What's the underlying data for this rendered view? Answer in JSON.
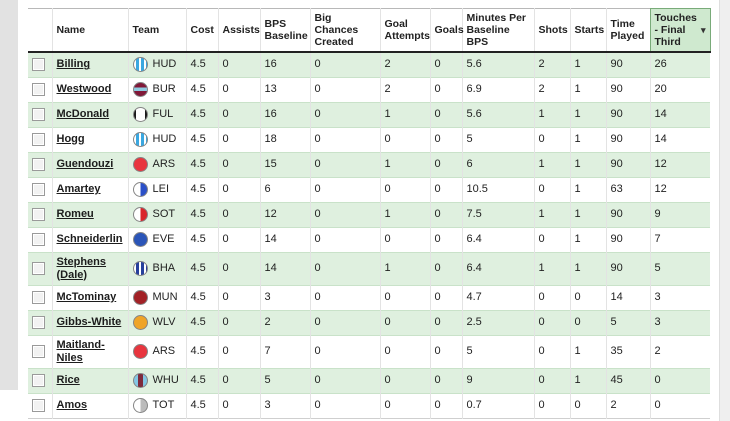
{
  "page": {
    "left_strip_color": "#e2e2e2",
    "right_strip_color": "#efefef"
  },
  "table": {
    "sort_icon": "▾",
    "colors": {
      "row_highlight": "#dff0df",
      "row_highlight_border": "#c9e2c9",
      "sorted_header_bg": "#cfe9cf",
      "sorted_header_border": "#79ab79",
      "header_rule": "#222222",
      "grid_line": "#e3e3e3"
    },
    "columns": [
      {
        "key": "select",
        "label": "",
        "sorted": false
      },
      {
        "key": "name",
        "label": "Name",
        "sorted": false
      },
      {
        "key": "team",
        "label": "Team",
        "sorted": false
      },
      {
        "key": "cost",
        "label": "Cost",
        "sorted": false
      },
      {
        "key": "assists",
        "label": "Assists",
        "sorted": false
      },
      {
        "key": "bps_baseline",
        "label": "BPS Baseline",
        "sorted": false
      },
      {
        "key": "big_chances_created",
        "label": "Big Chances Created",
        "sorted": false
      },
      {
        "key": "goal_attempts",
        "label": "Goal Attempts",
        "sorted": false
      },
      {
        "key": "goals",
        "label": "Goals",
        "sorted": false
      },
      {
        "key": "minutes_per_baseline_bps",
        "label": "Minutes Per Baseline BPS",
        "sorted": false
      },
      {
        "key": "shots",
        "label": "Shots",
        "sorted": false
      },
      {
        "key": "starts",
        "label": "Starts",
        "sorted": false
      },
      {
        "key": "time_played",
        "label": "Time Played",
        "sorted": false
      },
      {
        "key": "touches_final_third",
        "label": "Touches - Final Third",
        "sorted": true
      }
    ],
    "team_badges": {
      "HUD": {
        "type": "stripes",
        "colors": [
          "#ffffff",
          "#3ba7e0"
        ]
      },
      "BUR": {
        "type": "band-h",
        "colors": [
          "#801838",
          "#8ecbe0"
        ]
      },
      "FUL": {
        "type": "edges",
        "colors": [
          "#ffffff",
          "#1a1a1a"
        ]
      },
      "ARS": {
        "type": "solid",
        "colors": [
          "#e8353e"
        ]
      },
      "LEI": {
        "type": "half",
        "colors": [
          "#ffffff",
          "#2b50c8"
        ]
      },
      "SOT": {
        "type": "half",
        "colors": [
          "#ffffff",
          "#d9252b"
        ]
      },
      "EVE": {
        "type": "solid",
        "colors": [
          "#2b55b8"
        ]
      },
      "BHA": {
        "type": "stripes",
        "colors": [
          "#ffffff",
          "#27409c"
        ]
      },
      "MUN": {
        "type": "solid",
        "colors": [
          "#a22126"
        ]
      },
      "WLV": {
        "type": "solid",
        "colors": [
          "#efa428"
        ]
      },
      "WHU": {
        "type": "band-v",
        "colors": [
          "#84c7e4",
          "#7e2a3c"
        ]
      },
      "TOT": {
        "type": "half",
        "colors": [
          "#ffffff",
          "#bbbbbb"
        ]
      }
    },
    "rows": [
      {
        "name": "Billing",
        "team": "HUD",
        "cost": "4.5",
        "assists": "0",
        "bps_baseline": "16",
        "big_chances_created": "0",
        "goal_attempts": "2",
        "goals": "0",
        "minutes_per_baseline_bps": "5.6",
        "shots": "2",
        "starts": "1",
        "time_played": "90",
        "touches_final_third": "26",
        "highlight": true
      },
      {
        "name": "Westwood",
        "team": "BUR",
        "cost": "4.5",
        "assists": "0",
        "bps_baseline": "13",
        "big_chances_created": "0",
        "goal_attempts": "2",
        "goals": "0",
        "minutes_per_baseline_bps": "6.9",
        "shots": "2",
        "starts": "1",
        "time_played": "90",
        "touches_final_third": "20",
        "highlight": false
      },
      {
        "name": "McDonald",
        "team": "FUL",
        "cost": "4.5",
        "assists": "0",
        "bps_baseline": "16",
        "big_chances_created": "0",
        "goal_attempts": "1",
        "goals": "0",
        "minutes_per_baseline_bps": "5.6",
        "shots": "1",
        "starts": "1",
        "time_played": "90",
        "touches_final_third": "14",
        "highlight": true
      },
      {
        "name": "Hogg",
        "team": "HUD",
        "cost": "4.5",
        "assists": "0",
        "bps_baseline": "18",
        "big_chances_created": "0",
        "goal_attempts": "0",
        "goals": "0",
        "minutes_per_baseline_bps": "5",
        "shots": "0",
        "starts": "1",
        "time_played": "90",
        "touches_final_third": "14",
        "highlight": false
      },
      {
        "name": "Guendouzi",
        "team": "ARS",
        "cost": "4.5",
        "assists": "0",
        "bps_baseline": "15",
        "big_chances_created": "0",
        "goal_attempts": "1",
        "goals": "0",
        "minutes_per_baseline_bps": "6",
        "shots": "1",
        "starts": "1",
        "time_played": "90",
        "touches_final_third": "12",
        "highlight": true
      },
      {
        "name": "Amartey",
        "team": "LEI",
        "cost": "4.5",
        "assists": "0",
        "bps_baseline": "6",
        "big_chances_created": "0",
        "goal_attempts": "0",
        "goals": "0",
        "minutes_per_baseline_bps": "10.5",
        "shots": "0",
        "starts": "1",
        "time_played": "63",
        "touches_final_third": "12",
        "highlight": false
      },
      {
        "name": "Romeu",
        "team": "SOT",
        "cost": "4.5",
        "assists": "0",
        "bps_baseline": "12",
        "big_chances_created": "0",
        "goal_attempts": "1",
        "goals": "0",
        "minutes_per_baseline_bps": "7.5",
        "shots": "1",
        "starts": "1",
        "time_played": "90",
        "touches_final_third": "9",
        "highlight": true
      },
      {
        "name": "Schneiderlin",
        "team": "EVE",
        "cost": "4.5",
        "assists": "0",
        "bps_baseline": "14",
        "big_chances_created": "0",
        "goal_attempts": "0",
        "goals": "0",
        "minutes_per_baseline_bps": "6.4",
        "shots": "0",
        "starts": "1",
        "time_played": "90",
        "touches_final_third": "7",
        "highlight": false
      },
      {
        "name": "Stephens (Dale)",
        "team": "BHA",
        "cost": "4.5",
        "assists": "0",
        "bps_baseline": "14",
        "big_chances_created": "0",
        "goal_attempts": "1",
        "goals": "0",
        "minutes_per_baseline_bps": "6.4",
        "shots": "1",
        "starts": "1",
        "time_played": "90",
        "touches_final_third": "5",
        "highlight": true
      },
      {
        "name": "McTominay",
        "team": "MUN",
        "cost": "4.5",
        "assists": "0",
        "bps_baseline": "3",
        "big_chances_created": "0",
        "goal_attempts": "0",
        "goals": "0",
        "minutes_per_baseline_bps": "4.7",
        "shots": "0",
        "starts": "0",
        "time_played": "14",
        "touches_final_third": "3",
        "highlight": false
      },
      {
        "name": "Gibbs-White",
        "team": "WLV",
        "cost": "4.5",
        "assists": "0",
        "bps_baseline": "2",
        "big_chances_created": "0",
        "goal_attempts": "0",
        "goals": "0",
        "minutes_per_baseline_bps": "2.5",
        "shots": "0",
        "starts": "0",
        "time_played": "5",
        "touches_final_third": "3",
        "highlight": true
      },
      {
        "name": "Maitland-Niles",
        "team": "ARS",
        "cost": "4.5",
        "assists": "0",
        "bps_baseline": "7",
        "big_chances_created": "0",
        "goal_attempts": "0",
        "goals": "0",
        "minutes_per_baseline_bps": "5",
        "shots": "0",
        "starts": "1",
        "time_played": "35",
        "touches_final_third": "2",
        "highlight": false
      },
      {
        "name": "Rice",
        "team": "WHU",
        "cost": "4.5",
        "assists": "0",
        "bps_baseline": "5",
        "big_chances_created": "0",
        "goal_attempts": "0",
        "goals": "0",
        "minutes_per_baseline_bps": "9",
        "shots": "0",
        "starts": "1",
        "time_played": "45",
        "touches_final_third": "0",
        "highlight": true
      },
      {
        "name": "Amos",
        "team": "TOT",
        "cost": "4.5",
        "assists": "0",
        "bps_baseline": "3",
        "big_chances_created": "0",
        "goal_attempts": "0",
        "goals": "0",
        "minutes_per_baseline_bps": "0.7",
        "shots": "0",
        "starts": "0",
        "time_played": "2",
        "touches_final_third": "0",
        "highlight": false
      }
    ]
  }
}
